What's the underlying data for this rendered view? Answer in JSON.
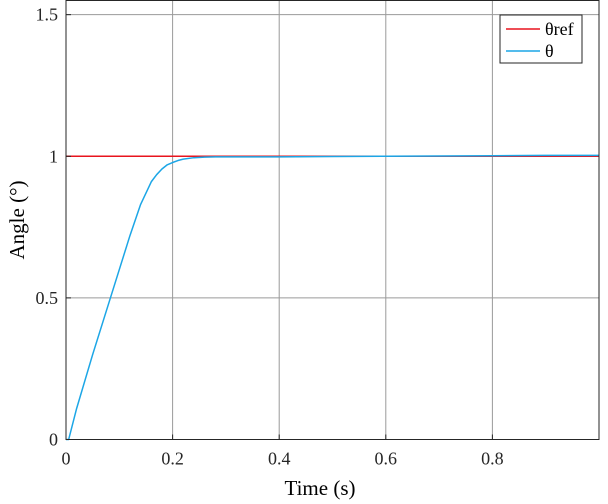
{
  "chart_data": {
    "type": "line",
    "title": "",
    "xlabel": "Time (s)",
    "ylabel": "Angle (°)",
    "xlim": [
      0,
      1
    ],
    "ylim": [
      0,
      1.55
    ],
    "xticks": [
      0,
      0.2,
      0.4,
      0.6,
      0.8
    ],
    "xtick_labels": [
      "0",
      "0.2",
      "0.4",
      "0.6",
      "0.8"
    ],
    "yticks": [
      0,
      0.5,
      1,
      1.5
    ],
    "ytick_labels": [
      "0",
      "0.5",
      "1",
      "1.5"
    ],
    "grid": true,
    "legend_position": "top-right",
    "series": [
      {
        "name": "θref",
        "color": "#e8141e",
        "x": [
          0,
          1
        ],
        "y": [
          1,
          1
        ]
      },
      {
        "name": "θ",
        "color": "#1ca6e6",
        "x": [
          0,
          0.005,
          0.02,
          0.05,
          0.08,
          0.1,
          0.12,
          0.14,
          0.16,
          0.17,
          0.18,
          0.19,
          0.2,
          0.21,
          0.22,
          0.24,
          0.26,
          0.28,
          0.3,
          0.35,
          0.4,
          0.5,
          0.6,
          0.7,
          0.8,
          0.9,
          1.0
        ],
        "y": [
          0,
          0.0,
          0.11,
          0.3,
          0.48,
          0.6,
          0.72,
          0.83,
          0.91,
          0.935,
          0.955,
          0.97,
          0.978,
          0.985,
          0.99,
          0.995,
          0.997,
          0.998,
          0.998,
          0.998,
          0.998,
          0.999,
          1.0,
          1.001,
          1.002,
          1.003,
          1.003
        ]
      }
    ]
  }
}
